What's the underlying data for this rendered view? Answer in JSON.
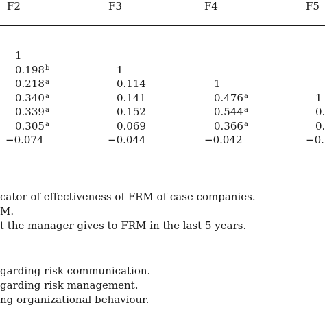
{
  "table": {
    "columns": [
      "F2",
      "F3",
      "F4",
      "F5"
    ],
    "rows": [
      [
        {
          "v": "1",
          "s": ""
        },
        {
          "v": "",
          "s": ""
        },
        {
          "v": "",
          "s": ""
        },
        {
          "v": "",
          "s": ""
        }
      ],
      [
        {
          "v": "0.198",
          "s": "b"
        },
        {
          "v": "1",
          "s": ""
        },
        {
          "v": "",
          "s": ""
        },
        {
          "v": "",
          "s": ""
        }
      ],
      [
        {
          "v": "0.218",
          "s": "a"
        },
        {
          "v": "0.114",
          "s": ""
        },
        {
          "v": "1",
          "s": ""
        },
        {
          "v": "",
          "s": ""
        }
      ],
      [
        {
          "v": "0.340",
          "s": "a"
        },
        {
          "v": "0.141",
          "s": ""
        },
        {
          "v": "0.476",
          "s": "a"
        },
        {
          "v": "1",
          "s": ""
        }
      ],
      [
        {
          "v": "0.339",
          "s": "a"
        },
        {
          "v": "0.152",
          "s": ""
        },
        {
          "v": "0.544",
          "s": "a"
        },
        {
          "v": "0.",
          "s": ""
        }
      ],
      [
        {
          "v": "0.305",
          "s": "a"
        },
        {
          "v": "0.069",
          "s": ""
        },
        {
          "v": "0.366",
          "s": "a"
        },
        {
          "v": "0.",
          "s": ""
        }
      ],
      [
        {
          "v": "−0.074",
          "s": ""
        },
        {
          "v": "−0.044",
          "s": ""
        },
        {
          "v": "−0.042",
          "s": ""
        },
        {
          "v": "−0.",
          "s": ""
        }
      ]
    ]
  },
  "notes": [
    "cator of effectiveness of FRM of case companies.",
    "M.",
    "t the manager gives to FRM in the last 5 years.",
    "",
    "garding risk communication.",
    "garding risk management.",
    "ng organizational behaviour."
  ]
}
